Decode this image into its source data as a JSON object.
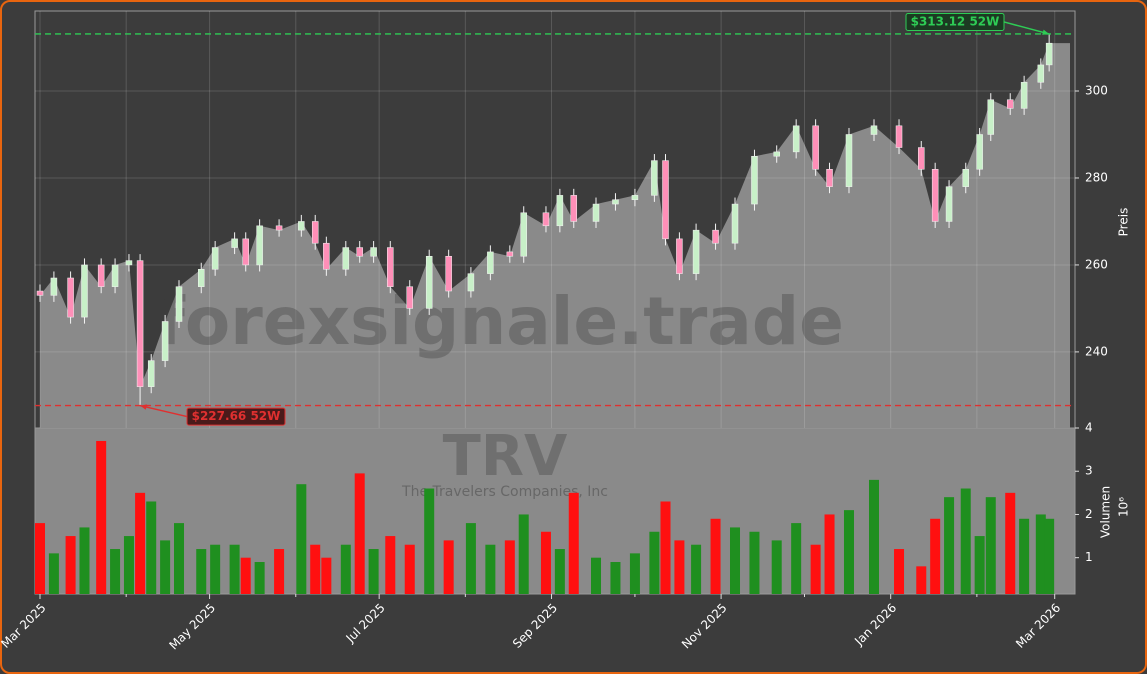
{
  "chart_data": {
    "type": "candlestick",
    "watermark": "forexsignale.trade",
    "watermark_ticker": "TRV",
    "watermark_company": "The Travelers Companies, Inc",
    "x": [
      0,
      5,
      11,
      16,
      22,
      27,
      32,
      36,
      40,
      45,
      50,
      58,
      63,
      70,
      74,
      79,
      86,
      94,
      99,
      103,
      110,
      115,
      120,
      126,
      133,
      140,
      147,
      155,
      162,
      169,
      174,
      182,
      187,
      192,
      200,
      207,
      214,
      221,
      225,
      230,
      236,
      243,
      250,
      257,
      265,
      272,
      279,
      284,
      291,
      300,
      309,
      317,
      322,
      327,
      333,
      338,
      342,
      349,
      354,
      360,
      363
    ],
    "open": [
      254,
      253,
      257,
      248,
      260,
      255,
      260,
      261,
      232,
      238,
      247,
      255,
      259,
      264,
      266,
      260,
      269,
      268,
      270,
      265,
      259,
      264,
      262,
      264,
      255,
      250,
      262,
      254,
      258,
      263,
      262,
      272,
      269,
      276,
      270,
      274,
      275,
      276,
      284,
      266,
      258,
      268,
      265,
      274,
      285,
      286,
      292,
      282,
      278,
      290,
      292,
      287,
      282,
      270,
      278,
      282,
      290,
      298,
      296,
      302,
      306
    ],
    "high": [
      255.5,
      258.5,
      258.5,
      261.5,
      261.5,
      261.5,
      262.5,
      262.5,
      239.5,
      248.5,
      256.5,
      260.5,
      265.5,
      267.5,
      267.5,
      270.5,
      270.5,
      271.5,
      271.5,
      266.5,
      265.5,
      265.5,
      265.5,
      265.5,
      256.5,
      263.5,
      263.5,
      259.5,
      264.5,
      264.5,
      273.5,
      273.5,
      277.5,
      277.5,
      275.5,
      276.5,
      277.5,
      285.5,
      285.5,
      267.5,
      269.5,
      269.5,
      275.5,
      286.5,
      287.5,
      293.5,
      293.5,
      283.5,
      291.5,
      293.5,
      293.5,
      288.5,
      283.5,
      279.5,
      283.5,
      291.5,
      299.5,
      299.5,
      303.5,
      307.5,
      313.12
    ],
    "low": [
      251.5,
      251.5,
      246.5,
      246.5,
      253.5,
      253.5,
      258.5,
      227.66,
      230.5,
      236.5,
      245.5,
      253.5,
      257.5,
      262.5,
      258.5,
      258.5,
      266.5,
      266.5,
      263.5,
      257.5,
      257.5,
      260.5,
      260.5,
      253.5,
      248.5,
      248.5,
      252.5,
      252.5,
      256.5,
      260.5,
      260.5,
      267.5,
      267.5,
      268.5,
      268.5,
      272.5,
      273.5,
      274.5,
      264.5,
      256.5,
      256.5,
      263.5,
      263.5,
      272.5,
      283.5,
      284.5,
      280.5,
      276.5,
      276.5,
      288.5,
      285.5,
      280.5,
      268.5,
      268.5,
      276.5,
      280.5,
      288.5,
      294.5,
      294.5,
      300.5,
      304.5
    ],
    "close": [
      253,
      257,
      248,
      260,
      255,
      260,
      261,
      232,
      238,
      247,
      255,
      259,
      264,
      266,
      260,
      269,
      268,
      270,
      265,
      259,
      264,
      262,
      264,
      255,
      250,
      262,
      254,
      258,
      263,
      262,
      272,
      269,
      276,
      270,
      274,
      275,
      276,
      284,
      266,
      258,
      268,
      265,
      274,
      285,
      286,
      292,
      282,
      278,
      290,
      292,
      287,
      282,
      270,
      278,
      282,
      290,
      298,
      296,
      302,
      306,
      311
    ],
    "volume": [
      1.8,
      1.1,
      1.5,
      1.7,
      3.7,
      1.2,
      1.5,
      2.5,
      2.3,
      1.4,
      1.8,
      1.2,
      1.3,
      1.3,
      1.0,
      0.9,
      1.2,
      2.7,
      1.3,
      1.0,
      1.3,
      2.95,
      1.2,
      1.5,
      1.3,
      2.6,
      1.4,
      1.8,
      1.3,
      1.4,
      2.0,
      1.6,
      1.2,
      2.5,
      1.0,
      0.9,
      1.1,
      1.6,
      2.3,
      1.4,
      1.3,
      1.9,
      1.7,
      1.6,
      1.4,
      1.8,
      1.3,
      2.0,
      2.1,
      2.8,
      1.2,
      0.8,
      1.9,
      2.4,
      2.6,
      1.5,
      2.4,
      2.5,
      1.9,
      2.0,
      1.9
    ],
    "xlim": [
      -1.8,
      372.3
    ],
    "xticks": [
      {
        "value": 0,
        "label": "Mar 2025"
      },
      {
        "value": 61,
        "label": "May 2025"
      },
      {
        "value": 122,
        "label": "Jul 2025"
      },
      {
        "value": 184,
        "label": "Sep 2025"
      },
      {
        "value": 245,
        "label": "Nov 2025"
      },
      {
        "value": 306,
        "label": "Jan 2026"
      },
      {
        "value": 365,
        "label": "Mar 2026"
      }
    ],
    "xminorticks": [
      31,
      92,
      153,
      214,
      275,
      337
    ],
    "ylim": [
      222.5,
      318.4
    ],
    "yticks": [
      240,
      260,
      280,
      300
    ],
    "y2lim": [
      0.16,
      4
    ],
    "y2ticks": [
      1,
      2,
      3,
      4
    ],
    "ylabel": "Preis",
    "y2label": "Volumen",
    "y2label_exponent": "10⁶",
    "grid": true,
    "up_color": "#c8f0c8",
    "down_color": "#ff8fb8",
    "volume_up_color": "#1f8f1f",
    "volume_down_color": "#ff1010",
    "area_color": "#8a8a8a",
    "annotations": [
      {
        "text": "$313.12 52W",
        "value": 313.12,
        "color": "#2ecc55"
      },
      {
        "text": "$227.66 52W",
        "value": 227.66,
        "color": "#e03030"
      }
    ]
  }
}
